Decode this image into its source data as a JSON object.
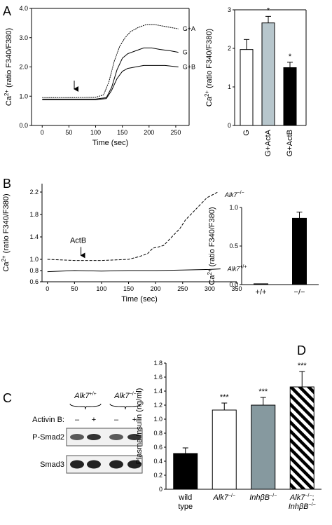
{
  "panels": {
    "A": "A",
    "B": "B",
    "C": "C",
    "D": "D"
  },
  "chart_data": [
    {
      "id": "A-trace",
      "type": "line",
      "xlabel": "Time (sec)",
      "ylabel": "Ca2+ (ratio F340/F380)",
      "xlim": [
        -20,
        275
      ],
      "ylim": [
        0,
        4.0
      ],
      "x_ticks": [
        "0",
        "50",
        "100",
        "150",
        "200",
        "250"
      ],
      "y_ticks": [
        "0.0",
        "1.0",
        "2.0",
        "3.0",
        "4.0"
      ],
      "arrow_at_x": 60,
      "series": [
        {
          "name": "G+A",
          "x": [
            0,
            50,
            100,
            115,
            125,
            135,
            145,
            155,
            165,
            180,
            195,
            210,
            225,
            240,
            255
          ],
          "y": [
            0.95,
            0.95,
            0.96,
            1.05,
            1.5,
            2.2,
            2.7,
            3.0,
            3.2,
            3.35,
            3.45,
            3.45,
            3.4,
            3.35,
            3.3
          ]
        },
        {
          "name": "G",
          "x": [
            0,
            50,
            100,
            120,
            130,
            140,
            150,
            160,
            175,
            190,
            205,
            220,
            240,
            255
          ],
          "y": [
            0.9,
            0.9,
            0.9,
            0.95,
            1.3,
            1.9,
            2.3,
            2.45,
            2.55,
            2.65,
            2.65,
            2.6,
            2.55,
            2.5
          ]
        },
        {
          "name": "G+B",
          "x": [
            0,
            50,
            100,
            120,
            130,
            140,
            150,
            160,
            175,
            190,
            210,
            230,
            255
          ],
          "y": [
            0.88,
            0.88,
            0.88,
            0.92,
            1.2,
            1.6,
            1.85,
            1.95,
            2.0,
            2.05,
            2.05,
            2.05,
            2.0
          ]
        }
      ]
    },
    {
      "id": "A-bars",
      "type": "bar",
      "ylabel": "Ca2+ (ratio F340/F380)",
      "ylim": [
        0,
        3
      ],
      "y_ticks": [
        "0",
        "1",
        "2",
        "3"
      ],
      "categories": [
        "G",
        "G+ActA",
        "G+ActB"
      ],
      "values": [
        1.97,
        2.66,
        1.5
      ],
      "errors": [
        0.26,
        0.17,
        0.14
      ],
      "significance": [
        "",
        "*",
        "*"
      ],
      "colors": [
        "#ffffff",
        "#b7c6cc",
        "#000000"
      ]
    },
    {
      "id": "B-trace",
      "type": "line",
      "xlabel": "Time (sec)",
      "ylabel": "Ca2+ (ratio F340/F380)",
      "xlim": [
        -10,
        350
      ],
      "ylim": [
        0.6,
        2.35
      ],
      "x_ticks": [
        "0",
        "50",
        "100",
        "150",
        "200",
        "250",
        "300",
        "350"
      ],
      "y_ticks": [
        "0.6",
        "0.8",
        "1.0",
        "1.4",
        "1.8",
        "2.2"
      ],
      "arrow_label": "ActB",
      "arrow_at_x": 62,
      "series": [
        {
          "name": "Alk7−/−",
          "x": [
            0,
            50,
            100,
            150,
            170,
            185,
            195,
            205,
            215,
            225,
            235,
            245,
            255,
            265,
            275,
            285,
            295,
            305,
            315
          ],
          "y": [
            1.0,
            0.98,
            0.98,
            1.0,
            1.05,
            1.1,
            1.2,
            1.22,
            1.25,
            1.35,
            1.45,
            1.55,
            1.7,
            1.8,
            1.9,
            2.0,
            2.1,
            2.15,
            2.2
          ]
        },
        {
          "name": "Alk7+/+",
          "x": [
            0,
            50,
            100,
            150,
            200,
            250,
            300,
            320
          ],
          "y": [
            0.78,
            0.8,
            0.79,
            0.8,
            0.8,
            0.81,
            0.82,
            0.83
          ]
        }
      ]
    },
    {
      "id": "B-bars",
      "type": "bar",
      "ylabel": "Ca2+ (ratio F340/F380)",
      "ylim": [
        0,
        1.0
      ],
      "y_ticks": [
        "0.0",
        "0.5",
        "1.0"
      ],
      "categories": [
        "+/+",
        "−/−"
      ],
      "values": [
        0.01,
        0.86
      ],
      "errors": [
        0.0,
        0.08
      ],
      "colors": [
        "#000000",
        "#000000"
      ]
    },
    {
      "id": "D-bars",
      "type": "bar",
      "ylabel": "Plasma Insulin (ng/ml)",
      "ylim": [
        0,
        1.8
      ],
      "y_ticks": [
        "0",
        "0.2",
        "0.4",
        "0.6",
        "0.8",
        "1.0",
        "1.2",
        "1.4",
        "1.6",
        "1.8"
      ],
      "categories": [
        {
          "line1": "wild",
          "line2": "type"
        },
        {
          "line1": "Alk7−/−",
          "line2": ""
        },
        {
          "line1": "InhβB−/−",
          "line2": ""
        },
        {
          "line1": "Alk7−/−;",
          "line2": "InhβB−/−"
        }
      ],
      "values": [
        0.51,
        1.13,
        1.2,
        1.46
      ],
      "errors": [
        0.08,
        0.1,
        0.11,
        0.22
      ],
      "significance": [
        "",
        "***",
        "***",
        "***"
      ],
      "fills": [
        "black",
        "white",
        "gray",
        "hatch"
      ]
    }
  ],
  "western": {
    "group_labels": [
      "Alk7+/+",
      "Alk7−/−"
    ],
    "treatment_label": "Activin B:",
    "lane_signs": [
      "–",
      "+",
      "–",
      "+"
    ],
    "rows": [
      "P-Smad2",
      "Smad3"
    ]
  }
}
